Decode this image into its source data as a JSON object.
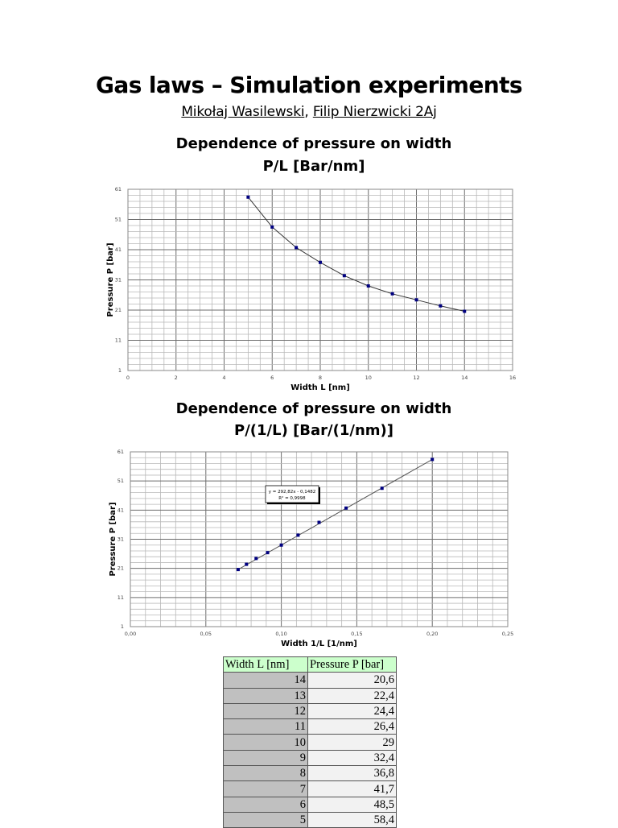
{
  "document": {
    "title": "Gas laws – Simulation experiments",
    "authors": [
      {
        "name": "Mikołaj Wasilewski"
      },
      {
        "name": "Filip Nierzwicki 2Aj"
      }
    ],
    "author_separator": ", "
  },
  "chart_data": [
    {
      "type": "scatter",
      "title": "Dependence of pressure on width",
      "subtitle": "P/L [Bar/nm]",
      "xlabel": "Width L [nm]",
      "ylabel": "Pressure P [bar]",
      "xlim": [
        0,
        16
      ],
      "ylim": [
        1,
        61
      ],
      "x_ticks": [
        "0",
        "2",
        "4",
        "6",
        "8",
        "10",
        "12",
        "14",
        "16"
      ],
      "y_ticks": [
        "1",
        "11",
        "21",
        "31",
        "41",
        "51",
        "61"
      ],
      "grid": true,
      "trendline": "smooth curve (power)",
      "series": [
        {
          "name": "Pressure P",
          "color": "#000080",
          "x": [
            5,
            6,
            7,
            8,
            9,
            10,
            11,
            12,
            13,
            14
          ],
          "y": [
            58.4,
            48.5,
            41.7,
            36.8,
            32.4,
            29,
            26.4,
            24.4,
            22.4,
            20.6
          ]
        }
      ]
    },
    {
      "type": "scatter",
      "title": "Dependence of pressure on width",
      "subtitle": "P/(1/L) [Bar/(1/nm)]",
      "xlabel": "Width 1/L [1/nm]",
      "ylabel": "Pressure P [bar]",
      "xlim": [
        0,
        0.25
      ],
      "ylim": [
        1,
        61
      ],
      "x_ticks": [
        "0,00",
        "0,05",
        "0,10",
        "0,15",
        "0,20",
        "0,25"
      ],
      "y_ticks": [
        "1",
        "11",
        "21",
        "31",
        "41",
        "51",
        "61"
      ],
      "grid": true,
      "trendline": "linear",
      "annotation": {
        "equation": "y = 292,82x - 0,1482",
        "r_squared": "R² = 0,9998"
      },
      "series": [
        {
          "name": "Pressure P",
          "color": "#000080",
          "x": [
            0.2,
            0.1667,
            0.1429,
            0.125,
            0.1111,
            0.1,
            0.0909,
            0.0833,
            0.0769,
            0.0714
          ],
          "y": [
            58.4,
            48.5,
            41.7,
            36.8,
            32.4,
            29,
            26.4,
            24.4,
            22.4,
            20.6
          ]
        }
      ]
    },
    {
      "type": "table",
      "columns": [
        "Width L [nm]",
        "Pressure P [bar]"
      ],
      "rows": [
        [
          "14",
          "20,6"
        ],
        [
          "13",
          "22,4"
        ],
        [
          "12",
          "24,4"
        ],
        [
          "11",
          "26,4"
        ],
        [
          "10",
          "29"
        ],
        [
          "9",
          "32,4"
        ],
        [
          "8",
          "36,8"
        ],
        [
          "7",
          "41,7"
        ],
        [
          "6",
          "48,5"
        ],
        [
          "5",
          "58,4"
        ]
      ]
    }
  ]
}
